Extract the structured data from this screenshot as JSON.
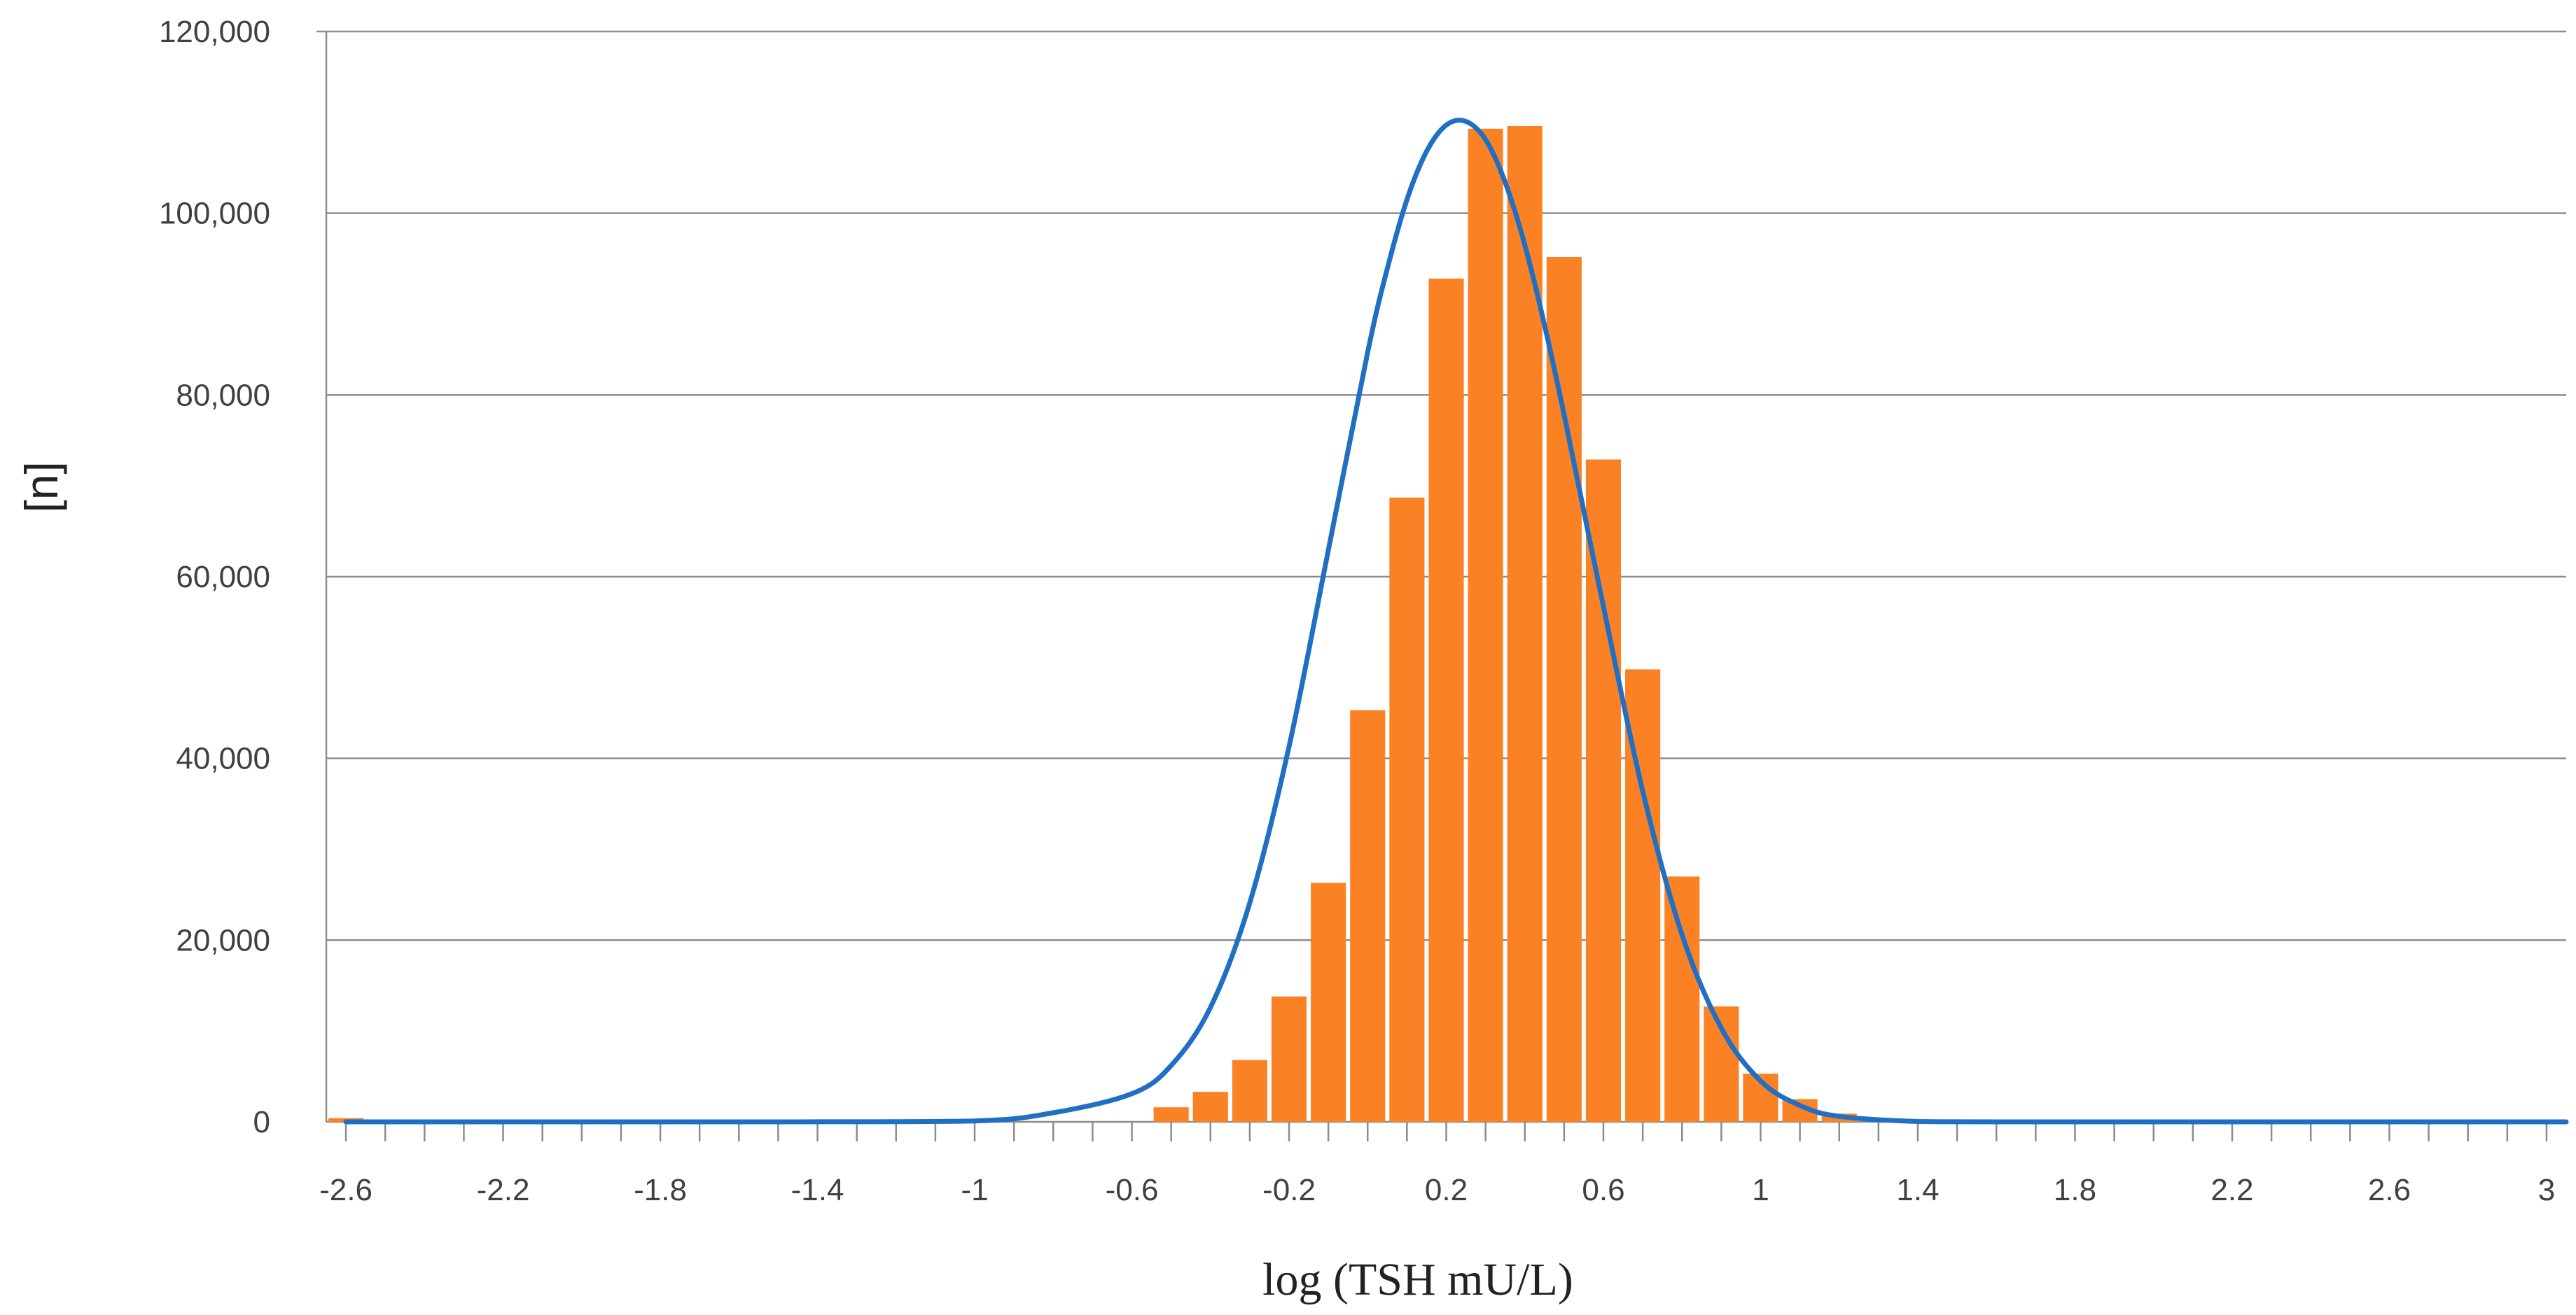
{
  "chart_data": {
    "type": "bar",
    "title": "",
    "xlabel": "log (TSH mU/L)",
    "ylabel": "[n]",
    "xlim": [
      -2.65,
      3.05
    ],
    "ylim": [
      0,
      120000
    ],
    "grid": true,
    "y_ticks": [
      0,
      20000,
      40000,
      60000,
      80000,
      100000,
      120000
    ],
    "y_tick_labels": [
      "0",
      "20,000",
      "40,000",
      "60,000",
      "80,000",
      "100,000",
      "120,000"
    ],
    "x_ticks": [
      -2.6,
      -2.2,
      -1.8,
      -1.4,
      -1,
      -0.6,
      -0.2,
      0.2,
      0.6,
      1,
      1.4,
      1.8,
      2.2,
      2.6,
      3
    ],
    "x_tick_labels": [
      "-2.6",
      "-2.2",
      "-1.8",
      "-1.4",
      "-1",
      "-0.6",
      "-0.2",
      "0.2",
      "0.6",
      "1",
      "1.4",
      "1.8",
      "2.2",
      "2.6",
      "3"
    ],
    "bar_width": 0.1,
    "bars": {
      "x": [
        -2.6,
        -0.5,
        -0.4,
        -0.3,
        -0.2,
        -0.1,
        0.0,
        0.1,
        0.2,
        0.3,
        0.4,
        0.5,
        0.6,
        0.7,
        0.8,
        0.9,
        1.0,
        1.1,
        1.2
      ],
      "values": [
        400,
        1600,
        3300,
        6800,
        13800,
        26300,
        45300,
        68700,
        92800,
        109300,
        109600,
        95200,
        72900,
        49800,
        27000,
        12700,
        5300,
        2500,
        900
      ],
      "color": "#fb8224"
    },
    "series": [
      {
        "type": "line",
        "x": [
          -2.6,
          -2.0,
          -1.5,
          -1.0,
          -0.8,
          -0.6,
          -0.5,
          -0.4,
          -0.3,
          -0.2,
          -0.1,
          0.0,
          0.05,
          0.1,
          0.15,
          0.2,
          0.25,
          0.3,
          0.35,
          0.4,
          0.45,
          0.5,
          0.6,
          0.7,
          0.8,
          0.9,
          1.0,
          1.1,
          1.2,
          1.4,
          1.6,
          2.0,
          2.5,
          3.05
        ],
        "values": [
          0,
          0,
          0,
          100,
          1000,
          3100,
          6200,
          12600,
          24100,
          41300,
          62900,
          84700,
          93900,
          101500,
          106800,
          109700,
          110100,
          108100,
          103400,
          96500,
          87700,
          77800,
          56700,
          36400,
          20600,
          10300,
          4500,
          1800,
          600,
          40,
          0,
          0,
          0,
          0
        ],
        "color": "#1f6fc5"
      }
    ]
  }
}
